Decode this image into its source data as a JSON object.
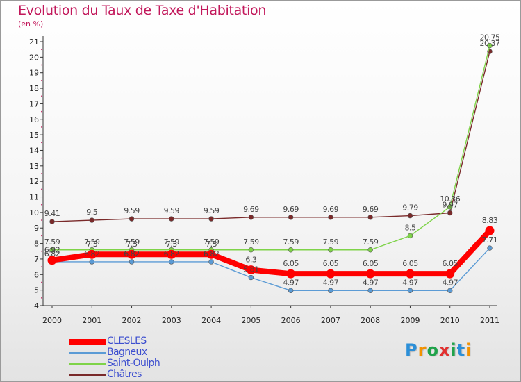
{
  "chart_data": {
    "type": "line",
    "title": "Evolution du Taux de Taxe d'Habitation",
    "ylabel": "(en %)",
    "xlabel": "",
    "categories": [
      "2000",
      "2001",
      "2002",
      "2003",
      "2004",
      "2005",
      "2006",
      "2007",
      "2008",
      "2009",
      "2010",
      "2011"
    ],
    "ylim": [
      4,
      21
    ],
    "yticks": [
      4,
      5,
      6,
      7,
      8,
      9,
      10,
      11,
      12,
      13,
      14,
      15,
      16,
      17,
      18,
      19,
      20,
      21
    ],
    "grid": false,
    "legend_position": "bottom-left",
    "series": [
      {
        "name": "CLESLES",
        "color": "#ff0000",
        "style": "thick",
        "values": [
          6.92,
          7.3,
          7.3,
          7.3,
          7.3,
          6.3,
          6.05,
          6.05,
          6.05,
          6.05,
          6.05,
          8.83
        ],
        "labels": [
          "6.92",
          "7.3",
          "7.3",
          "7.3",
          "7.3",
          "6.3",
          "6.05",
          "6.05",
          "6.05",
          "6.05",
          "6.05",
          "8.83"
        ]
      },
      {
        "name": "Bagneux",
        "color": "#5b9bd5",
        "style": "thin",
        "values": [
          6.82,
          6.82,
          6.82,
          6.82,
          6.82,
          5.81,
          4.97,
          4.97,
          4.97,
          4.97,
          4.97,
          7.71
        ],
        "labels": [
          "6.82",
          "6.82",
          "6.82",
          "6.82",
          "6.82",
          "5.81",
          "4.97",
          "4.97",
          "4.97",
          "4.97",
          "4.97",
          "7.71"
        ]
      },
      {
        "name": "Saint-Oulph",
        "color": "#7ed348",
        "style": "thin",
        "values": [
          7.59,
          7.59,
          7.59,
          7.59,
          7.59,
          7.59,
          7.59,
          7.59,
          7.59,
          8.5,
          10.36,
          20.75
        ],
        "labels": [
          "7.59",
          "7.59",
          "7.59",
          "7.59",
          "7.59",
          "7.59",
          "7.59",
          "7.59",
          "7.59",
          "8.5",
          "10.36",
          "20.75"
        ]
      },
      {
        "name": "Châtres",
        "color": "#7a2a2a",
        "style": "thin",
        "values": [
          9.41,
          9.5,
          9.59,
          9.59,
          9.59,
          9.69,
          9.69,
          9.69,
          9.69,
          9.79,
          9.97,
          20.37
        ],
        "labels": [
          "9.41",
          "9.5",
          "9.59",
          "9.59",
          "9.59",
          "9.69",
          "9.69",
          "9.69",
          "9.69",
          "9.79",
          "9.97",
          "20.37"
        ]
      }
    ]
  },
  "logo": {
    "letters": [
      "P",
      "r",
      "o",
      "x",
      "i",
      "t",
      "i"
    ],
    "colors": [
      "#2b8fd8",
      "#f39200",
      "#1fa34a",
      "#e2302f",
      "#1fa34a",
      "#2b8fd8",
      "#f39200"
    ]
  }
}
